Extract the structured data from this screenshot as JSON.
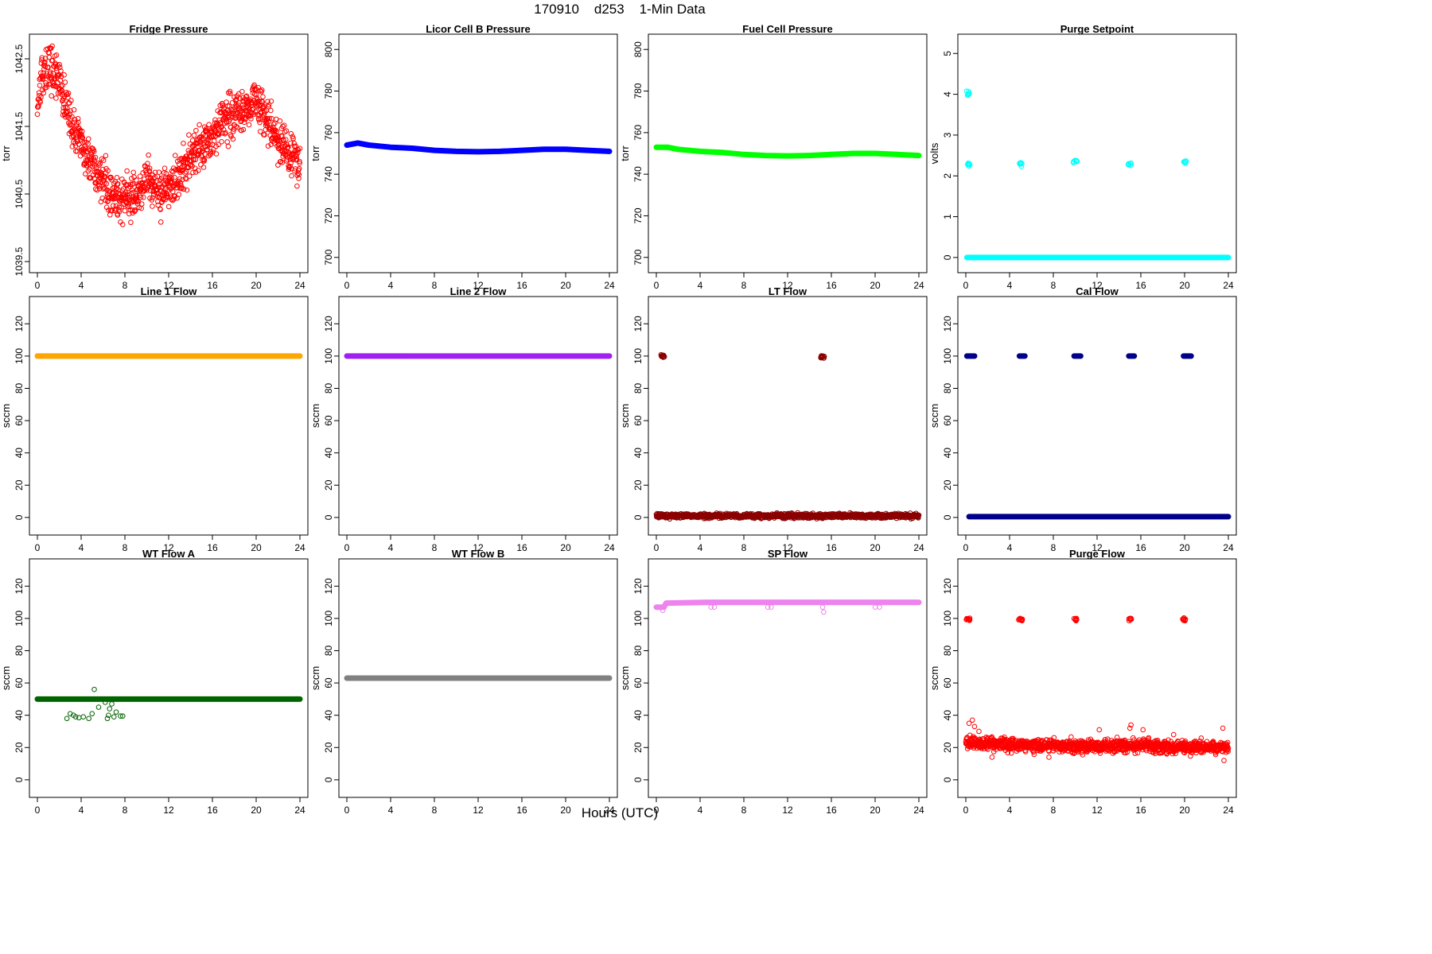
{
  "figure": {
    "title": "170910    d253    1-Min Data",
    "xlabel": "Hours (UTC)"
  },
  "chart_data": [
    {
      "type": "scatter",
      "title": "Fridge Pressure",
      "ylabel": "torr",
      "color": "#ff0000",
      "xlim": [
        0,
        24
      ],
      "ylim": [
        1039.5,
        1042.7
      ],
      "xticks": [
        0,
        4,
        8,
        12,
        16,
        20,
        24
      ],
      "yticks": [
        1039.5,
        1040.5,
        1041.5,
        1042.5
      ],
      "series": [
        {
          "mode": "noisy",
          "profile": [
            [
              0,
              1041.8
            ],
            [
              0.5,
              1042.3
            ],
            [
              1,
              1042.4
            ],
            [
              2,
              1042.2
            ],
            [
              3,
              1041.6
            ],
            [
              4,
              1041.2
            ],
            [
              5,
              1040.9
            ],
            [
              6,
              1040.7
            ],
            [
              7,
              1040.5
            ],
            [
              8,
              1040.35
            ],
            [
              9,
              1040.5
            ],
            [
              10,
              1040.7
            ],
            [
              11,
              1040.5
            ],
            [
              12,
              1040.6
            ],
            [
              13,
              1040.8
            ],
            [
              14,
              1041.0
            ],
            [
              15,
              1041.2
            ],
            [
              16,
              1041.4
            ],
            [
              17,
              1041.6
            ],
            [
              18,
              1041.7
            ],
            [
              19,
              1041.7
            ],
            [
              20,
              1041.9
            ],
            [
              21,
              1041.6
            ],
            [
              22,
              1041.3
            ],
            [
              23,
              1041.1
            ],
            [
              24,
              1040.9
            ]
          ],
          "noise": 0.32,
          "n": 1100
        }
      ]
    },
    {
      "type": "scatter",
      "title": "Licor Cell B Pressure",
      "ylabel": "torr",
      "color": "#0000ff",
      "xlim": [
        0,
        24
      ],
      "ylim": [
        698,
        802
      ],
      "xticks": [
        0,
        4,
        8,
        12,
        16,
        20,
        24
      ],
      "yticks": [
        700,
        720,
        740,
        760,
        780,
        800
      ],
      "series": [
        {
          "mode": "line",
          "profile": [
            [
              0,
              754
            ],
            [
              1,
              755
            ],
            [
              2,
              754
            ],
            [
              4,
              753
            ],
            [
              6,
              752.5
            ],
            [
              8,
              751.5
            ],
            [
              10,
              751
            ],
            [
              12,
              750.8
            ],
            [
              14,
              751
            ],
            [
              16,
              751.5
            ],
            [
              18,
              752
            ],
            [
              20,
              752
            ],
            [
              22,
              751.5
            ],
            [
              24,
              751
            ]
          ]
        }
      ]
    },
    {
      "type": "scatter",
      "title": "Fuel Cell Pressure",
      "ylabel": "torr",
      "color": "#00ff00",
      "xlim": [
        0,
        24
      ],
      "ylim": [
        698,
        802
      ],
      "xticks": [
        0,
        4,
        8,
        12,
        16,
        20,
        24
      ],
      "yticks": [
        700,
        720,
        740,
        760,
        780,
        800
      ],
      "series": [
        {
          "mode": "line",
          "profile": [
            [
              0,
              753
            ],
            [
              1,
              753
            ],
            [
              2,
              752
            ],
            [
              4,
              751
            ],
            [
              6,
              750.5
            ],
            [
              8,
              749.5
            ],
            [
              10,
              749
            ],
            [
              12,
              748.8
            ],
            [
              14,
              749
            ],
            [
              16,
              749.5
            ],
            [
              18,
              750
            ],
            [
              20,
              750
            ],
            [
              22,
              749.5
            ],
            [
              24,
              749
            ]
          ]
        }
      ]
    },
    {
      "type": "scatter",
      "title": "Purge Setpoint",
      "ylabel": "volts",
      "color": "#00ffff",
      "xlim": [
        0,
        24
      ],
      "ylim": [
        -0.1,
        5.2
      ],
      "xticks": [
        0,
        4,
        8,
        12,
        16,
        20,
        24
      ],
      "yticks": [
        0,
        1,
        2,
        3,
        4,
        5
      ],
      "series": [
        {
          "mode": "line",
          "profile": [
            [
              0.1,
              0
            ],
            [
              24,
              0
            ]
          ]
        },
        {
          "mode": "clusters",
          "centers": [
            [
              0.2,
              4.02
            ],
            [
              0.2,
              2.28
            ],
            [
              5.0,
              2.3
            ],
            [
              10.0,
              2.35
            ],
            [
              15.0,
              2.3
            ],
            [
              20.0,
              2.33
            ]
          ],
          "noise": 0.05,
          "n_each": 8
        }
      ]
    },
    {
      "type": "scatter",
      "title": "Line 1 Flow",
      "ylabel": "sccm",
      "color": "#ffa500",
      "xlim": [
        0,
        24
      ],
      "ylim": [
        -4,
        130
      ],
      "xticks": [
        0,
        4,
        8,
        12,
        16,
        20,
        24
      ],
      "yticks": [
        0,
        20,
        40,
        60,
        80,
        100,
        120
      ],
      "series": [
        {
          "mode": "line",
          "profile": [
            [
              0,
              100
            ],
            [
              24,
              100
            ]
          ]
        }
      ]
    },
    {
      "type": "scatter",
      "title": "Line 2 Flow",
      "ylabel": "sccm",
      "color": "#a020f0",
      "xlim": [
        0,
        24
      ],
      "ylim": [
        -4,
        130
      ],
      "xticks": [
        0,
        4,
        8,
        12,
        16,
        20,
        24
      ],
      "yticks": [
        0,
        20,
        40,
        60,
        80,
        100,
        120
      ],
      "series": [
        {
          "mode": "line",
          "profile": [
            [
              0,
              100
            ],
            [
              24,
              100
            ]
          ]
        }
      ]
    },
    {
      "type": "scatter",
      "title": "LT Flow",
      "ylabel": "sccm",
      "color": "#8b0000",
      "xlim": [
        0,
        24
      ],
      "ylim": [
        -4,
        130
      ],
      "xticks": [
        0,
        4,
        8,
        12,
        16,
        20,
        24
      ],
      "yticks": [
        0,
        20,
        40,
        60,
        80,
        100,
        120
      ],
      "series": [
        {
          "mode": "noisy",
          "profile": [
            [
              0,
              1
            ],
            [
              24,
              1
            ]
          ],
          "noise": 1.4,
          "n": 1000
        },
        {
          "mode": "clusters",
          "centers": [
            [
              0.6,
              100
            ],
            [
              15.2,
              99.5
            ]
          ],
          "noise": 1.3,
          "n_each": 14
        }
      ]
    },
    {
      "type": "scatter",
      "title": "Cal Flow",
      "ylabel": "sccm",
      "color": "#00008b",
      "xlim": [
        0,
        24
      ],
      "ylim": [
        -4,
        130
      ],
      "xticks": [
        0,
        4,
        8,
        12,
        16,
        20,
        24
      ],
      "yticks": [
        0,
        20,
        40,
        60,
        80,
        100,
        120
      ],
      "series": [
        {
          "mode": "line",
          "profile": [
            [
              0.3,
              0.5
            ],
            [
              24,
              0.5
            ]
          ]
        },
        {
          "mode": "segments",
          "y": 100,
          "ranges": [
            [
              0.1,
              0.8
            ],
            [
              4.9,
              5.4
            ],
            [
              9.9,
              10.5
            ],
            [
              14.9,
              15.4
            ],
            [
              19.9,
              20.6
            ]
          ]
        }
      ]
    },
    {
      "type": "scatter",
      "title": "WT Flow A",
      "ylabel": "sccm",
      "color": "#006400",
      "xlim": [
        0,
        24
      ],
      "ylim": [
        -4,
        130
      ],
      "xticks": [
        0,
        4,
        8,
        12,
        16,
        20,
        24
      ],
      "yticks": [
        0,
        20,
        40,
        60,
        80,
        100,
        120
      ],
      "series": [
        {
          "mode": "line",
          "profile": [
            [
              0,
              50
            ],
            [
              24,
              50
            ]
          ]
        },
        {
          "mode": "points",
          "points": [
            [
              2.7,
              38
            ],
            [
              3.0,
              41
            ],
            [
              3.3,
              40
            ],
            [
              3.5,
              39
            ],
            [
              3.8,
              38.5
            ],
            [
              4.2,
              39
            ],
            [
              4.7,
              38
            ],
            [
              5.0,
              41
            ],
            [
              5.2,
              56
            ],
            [
              5.6,
              45
            ],
            [
              6.4,
              38
            ],
            [
              6.5,
              40
            ],
            [
              6.6,
              44
            ],
            [
              6.8,
              47
            ],
            [
              7.0,
              39
            ],
            [
              7.2,
              42
            ],
            [
              7.6,
              39.5
            ],
            [
              7.8,
              39.5
            ],
            [
              6.2,
              48
            ]
          ]
        }
      ]
    },
    {
      "type": "scatter",
      "title": "WT Flow B",
      "ylabel": "sccm",
      "color": "#808080",
      "xlim": [
        0,
        24
      ],
      "ylim": [
        -4,
        130
      ],
      "xticks": [
        0,
        4,
        8,
        12,
        16,
        20,
        24
      ],
      "yticks": [
        0,
        20,
        40,
        60,
        80,
        100,
        120
      ],
      "series": [
        {
          "mode": "line",
          "profile": [
            [
              0,
              63
            ],
            [
              24,
              63
            ]
          ]
        }
      ]
    },
    {
      "type": "scatter",
      "title": "SP Flow",
      "ylabel": "sccm",
      "color": "#ee82ee",
      "xlim": [
        0,
        24
      ],
      "ylim": [
        -4,
        130
      ],
      "xticks": [
        0,
        4,
        8,
        12,
        16,
        20,
        24
      ],
      "yticks": [
        0,
        20,
        40,
        60,
        80,
        100,
        120
      ],
      "series": [
        {
          "mode": "line",
          "profile": [
            [
              0,
              107
            ],
            [
              0.7,
              107
            ],
            [
              0.9,
              109.5
            ],
            [
              4.9,
              110
            ],
            [
              5.4,
              110
            ],
            [
              9.9,
              110
            ],
            [
              10.6,
              110
            ],
            [
              14.9,
              110
            ],
            [
              15.5,
              110
            ],
            [
              19.9,
              110
            ],
            [
              20.6,
              110
            ],
            [
              24,
              110
            ]
          ]
        },
        {
          "mode": "points",
          "points": [
            [
              0.6,
              105
            ],
            [
              5.0,
              107
            ],
            [
              5.3,
              107
            ],
            [
              10.2,
              107
            ],
            [
              10.5,
              107
            ],
            [
              15.2,
              107
            ],
            [
              15.3,
              104
            ],
            [
              20.0,
              107
            ],
            [
              20.4,
              107
            ]
          ]
        }
      ]
    },
    {
      "type": "scatter",
      "title": "Purge Flow",
      "ylabel": "sccm",
      "color": "#ff0000",
      "xlim": [
        0,
        24
      ],
      "ylim": [
        -4,
        130
      ],
      "xticks": [
        0,
        4,
        8,
        12,
        16,
        20,
        24
      ],
      "yticks": [
        0,
        20,
        40,
        60,
        80,
        100,
        120
      ],
      "series": [
        {
          "mode": "noisy",
          "profile": [
            [
              0,
              23
            ],
            [
              4,
              22
            ],
            [
              8,
              21
            ],
            [
              12,
              21
            ],
            [
              16,
              21
            ],
            [
              20,
              20
            ],
            [
              24,
              20
            ]
          ],
          "noise": 4,
          "n": 1200
        },
        {
          "mode": "clusters",
          "centers": [
            [
              0.2,
              99.5
            ],
            [
              5.0,
              99.5
            ],
            [
              10.0,
              99.5
            ],
            [
              15.0,
              99.5
            ],
            [
              20.0,
              99.5
            ]
          ],
          "noise": 1.0,
          "n_each": 10
        },
        {
          "mode": "points",
          "points": [
            [
              0.3,
              35
            ],
            [
              0.6,
              37
            ],
            [
              0.8,
              33
            ],
            [
              1.2,
              30
            ],
            [
              15.0,
              32
            ],
            [
              15.1,
              34
            ],
            [
              12.2,
              31
            ],
            [
              16.2,
              31
            ],
            [
              19.0,
              28
            ],
            [
              23.5,
              32
            ],
            [
              23.6,
              12
            ],
            [
              2.4,
              14
            ],
            [
              7.6,
              14
            ]
          ]
        }
      ]
    }
  ]
}
